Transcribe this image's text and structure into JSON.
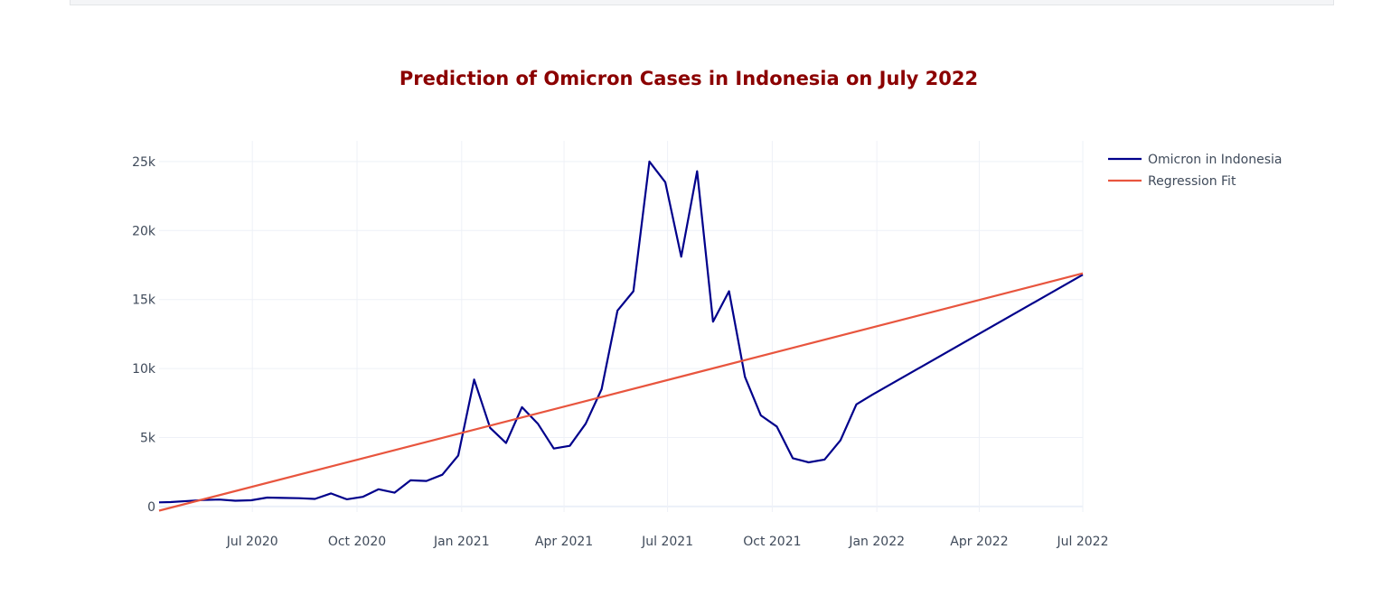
{
  "chart_data": {
    "type": "line",
    "title": "Prediction of Omicron Cases in Indonesia on July 2022",
    "xlabel": "",
    "ylabel": "",
    "x_range": [
      "2020-04-10",
      "2022-07-01"
    ],
    "ylim": [
      -400,
      26500
    ],
    "y_ticks": [
      0,
      5000,
      10000,
      15000,
      20000,
      25000
    ],
    "y_tick_labels": [
      "0",
      "5k",
      "10k",
      "15k",
      "20k",
      "25k"
    ],
    "x_ticks": [
      "2020-07-01",
      "2020-10-01",
      "2021-01-01",
      "2021-04-01",
      "2021-07-01",
      "2021-10-01",
      "2022-01-01",
      "2022-04-01",
      "2022-07-01"
    ],
    "x_tick_labels": [
      "Jul 2020",
      "Oct 2020",
      "Jan 2021",
      "Apr 2021",
      "Jul 2021",
      "Oct 2021",
      "Jan 2022",
      "Apr 2022",
      "Jul 2022"
    ],
    "grid": true,
    "legend_position": "top-right",
    "series": [
      {
        "name": "Omicron in Indonesia",
        "color": "#00008b",
        "x": [
          "2020-04-10",
          "2020-04-20",
          "2020-05-05",
          "2020-05-19",
          "2020-06-02",
          "2020-06-16",
          "2020-06-30",
          "2020-07-14",
          "2020-07-28",
          "2020-08-11",
          "2020-08-25",
          "2020-09-08",
          "2020-09-22",
          "2020-10-06",
          "2020-10-20",
          "2020-11-03",
          "2020-11-17",
          "2020-12-01",
          "2020-12-15",
          "2020-12-29",
          "2021-01-12",
          "2021-01-26",
          "2021-02-09",
          "2021-02-23",
          "2021-03-09",
          "2021-03-23",
          "2021-04-06",
          "2021-04-20",
          "2021-05-04",
          "2021-05-18",
          "2021-06-01",
          "2021-06-15",
          "2021-06-29",
          "2021-07-13",
          "2021-07-27",
          "2021-08-10",
          "2021-08-24",
          "2021-09-07",
          "2021-09-21",
          "2021-10-05",
          "2021-10-19",
          "2021-11-02",
          "2021-11-16",
          "2021-11-30",
          "2021-12-14",
          "2021-12-28",
          "2022-07-01"
        ],
        "y": [
          300,
          320,
          400,
          470,
          500,
          420,
          450,
          650,
          620,
          600,
          550,
          950,
          520,
          700,
          1250,
          1000,
          1900,
          1850,
          2300,
          3700,
          9200,
          5700,
          4600,
          7200,
          6000,
          4200,
          4400,
          6000,
          8500,
          14200,
          15600,
          25000,
          23500,
          18100,
          24300,
          13400,
          15600,
          9400,
          6600,
          5800,
          3500,
          3200,
          3400,
          4800,
          7400,
          8100,
          16800
        ]
      },
      {
        "name": "Regression Fit",
        "color": "#e8553e",
        "x": [
          "2020-04-10",
          "2022-07-01"
        ],
        "y": [
          -300,
          16900
        ]
      }
    ]
  }
}
